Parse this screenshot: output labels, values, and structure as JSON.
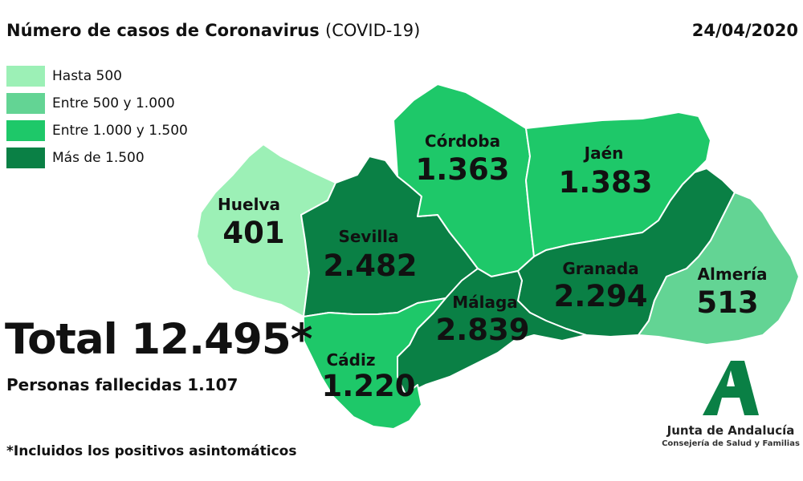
{
  "header": {
    "title": "Número de casos de Coronavirus",
    "title_sub": "(COVID-19)",
    "date": "24/04/2020"
  },
  "legend": [
    {
      "label": "Hasta 500",
      "color": "#9cf0b6"
    },
    {
      "label": "Entre 500 y 1.000",
      "color": "#63d494"
    },
    {
      "label": "Entre 1.000 y 1.500",
      "color": "#1ec869"
    },
    {
      "label": "Más de 1.500",
      "color": "#0a8045"
    }
  ],
  "provinces": [
    {
      "name": "Huelva",
      "value": "401",
      "color": "#9cf0b6"
    },
    {
      "name": "Sevilla",
      "value": "2.482",
      "color": "#0a8045"
    },
    {
      "name": "Córdoba",
      "value": "1.363",
      "color": "#1ec869"
    },
    {
      "name": "Jaén",
      "value": "1.383",
      "color": "#1ec869"
    },
    {
      "name": "Granada",
      "value": "2.294",
      "color": "#0a8045"
    },
    {
      "name": "Almería",
      "value": "513",
      "color": "#63d494"
    },
    {
      "name": "Málaga",
      "value": "2.839",
      "color": "#0a8045"
    },
    {
      "name": "Cádiz",
      "value": "1.220",
      "color": "#1ec869"
    }
  ],
  "summary": {
    "total": "Total 12.495*",
    "deaths": "Personas fallecidas 1.107",
    "footnote": "*Incluidos los positivos asintomáticos"
  },
  "logo": {
    "name": "Junta de Andalucía",
    "subtitle": "Consejería de Salud y Familias",
    "color": "#0a8045"
  }
}
